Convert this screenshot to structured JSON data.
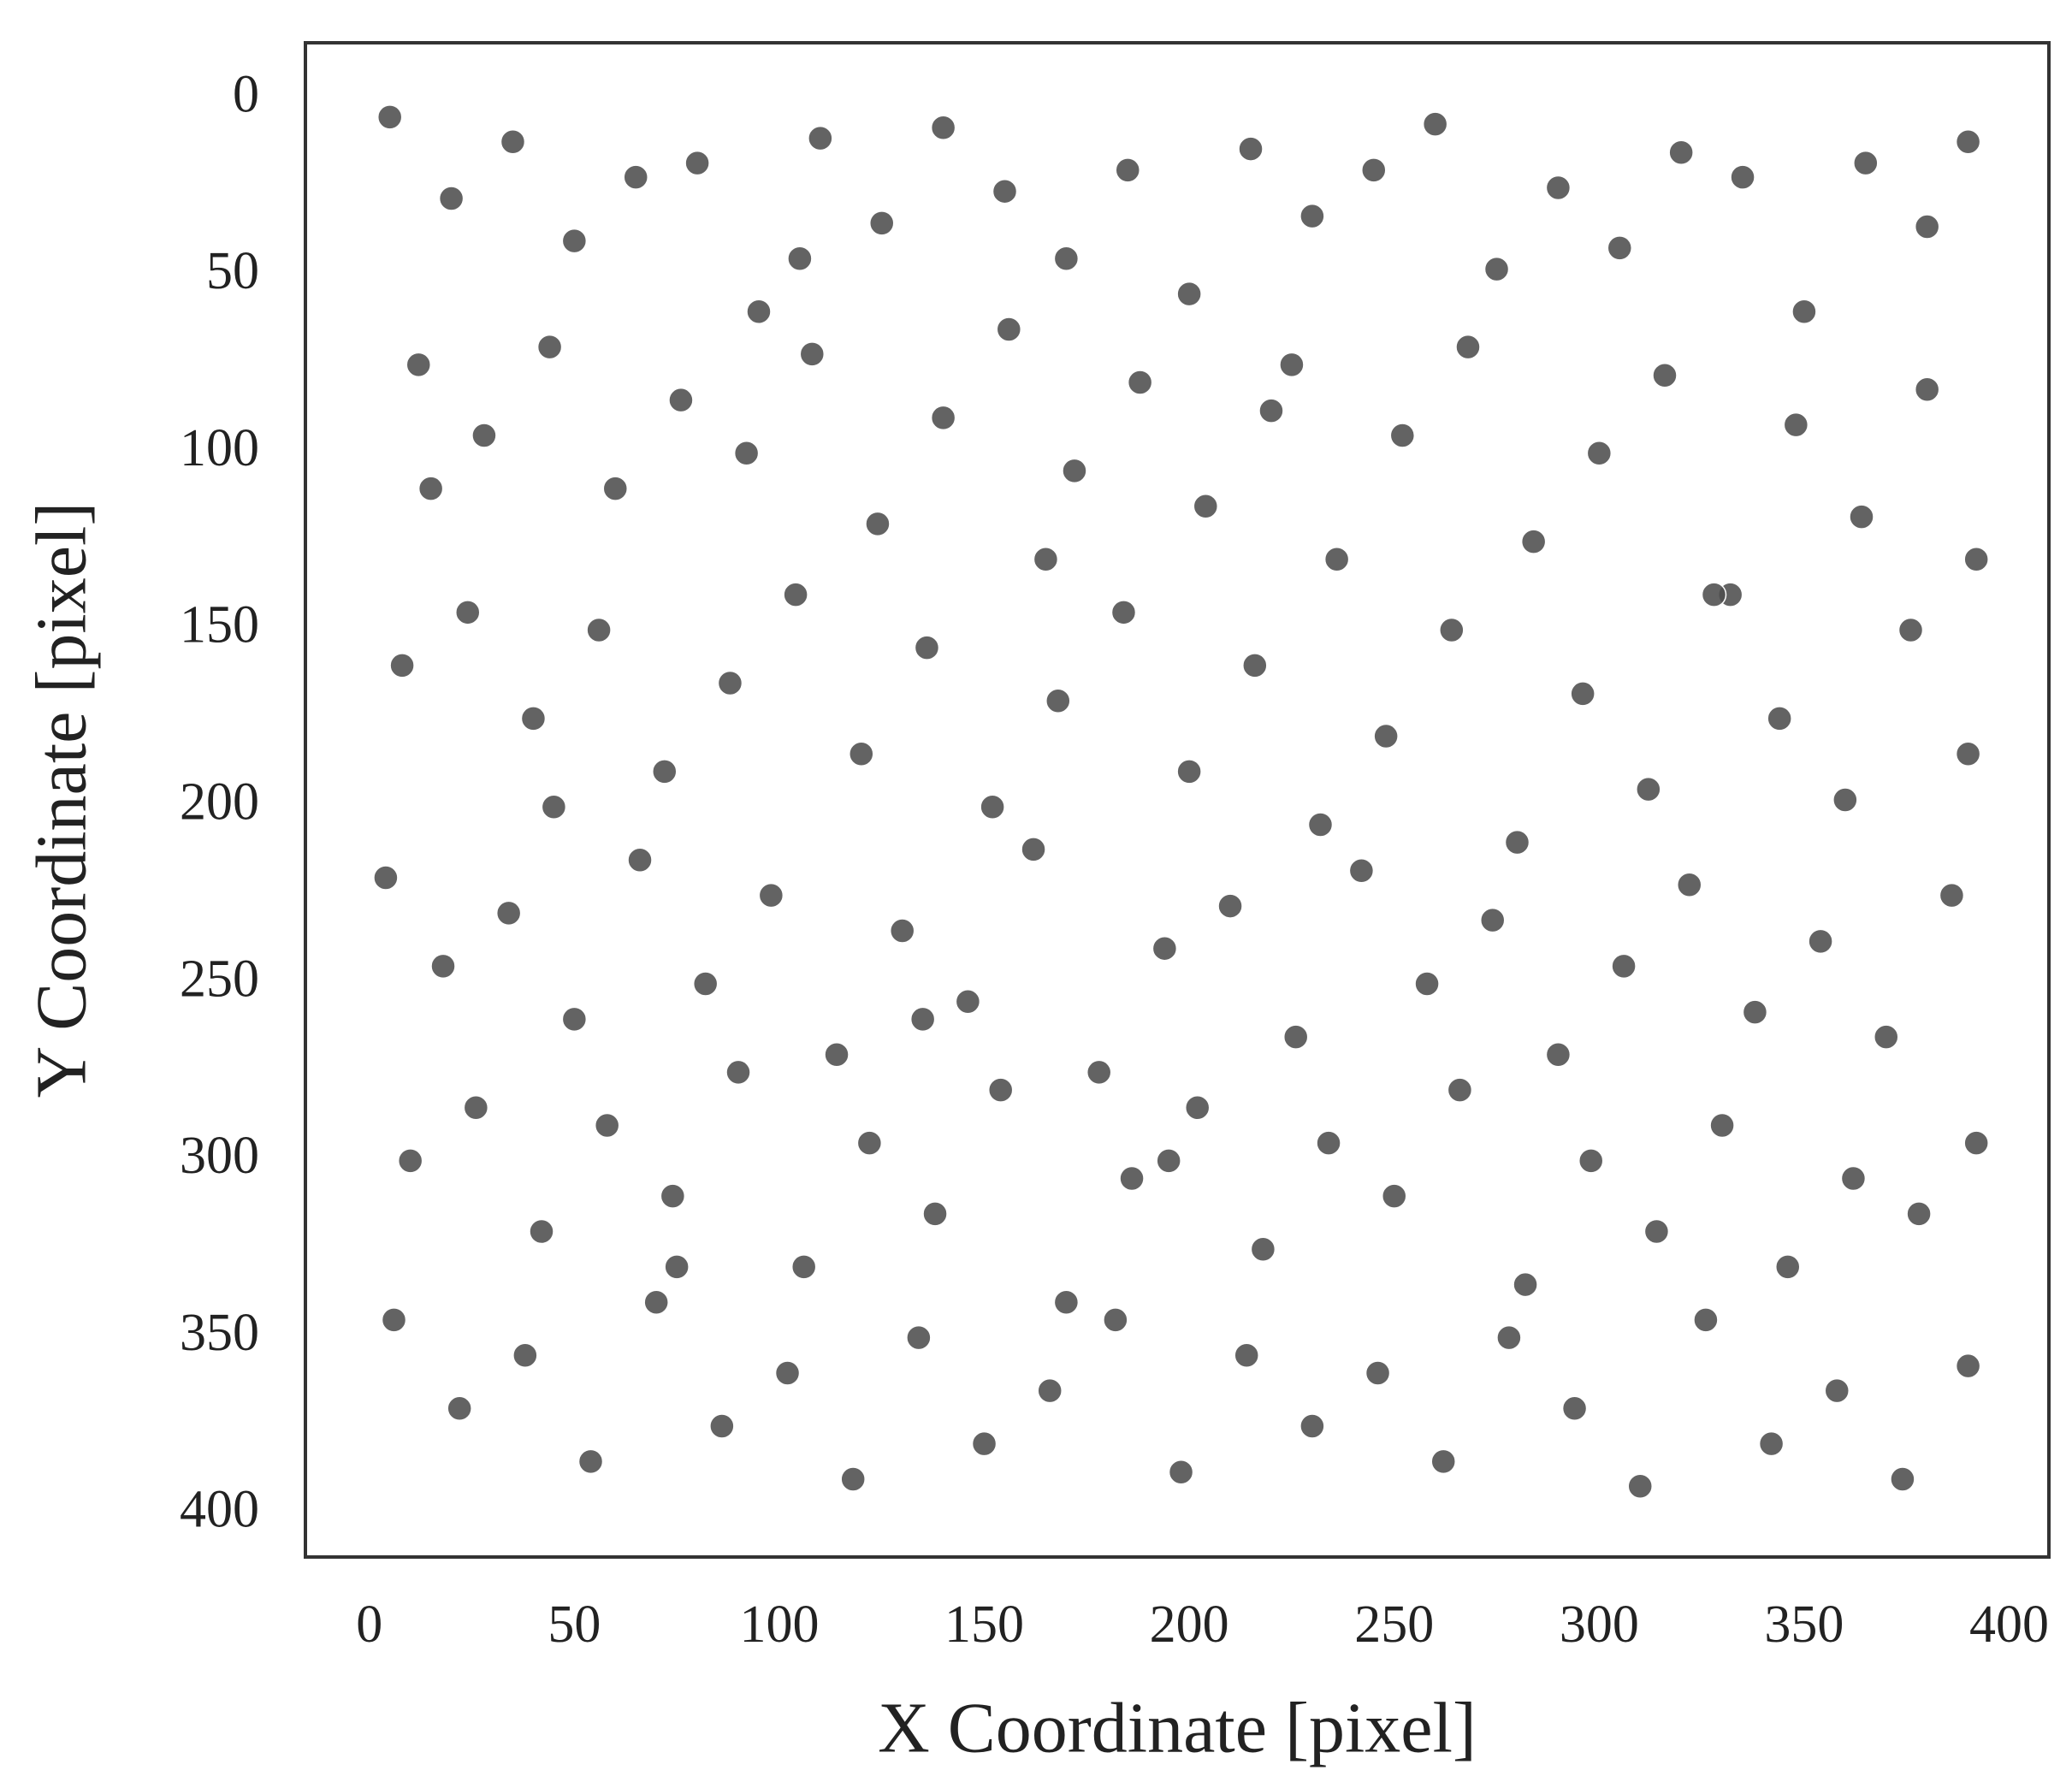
{
  "chart_data": {
    "type": "scatter",
    "xlabel": "X Coordinate [pixel]",
    "ylabel": "Y Coordinate [pixel]",
    "xlim": [
      -15.6,
      409.7
    ],
    "ylim": [
      412,
      -16
    ],
    "xticks": [
      0,
      50,
      100,
      150,
      200,
      250,
      300,
      350,
      400
    ],
    "yticks": [
      0,
      50,
      100,
      150,
      200,
      250,
      300,
      350,
      400
    ],
    "grid": false,
    "series": [
      {
        "color": "#4d4d4d",
        "x": [
          5,
          20,
          35,
          50,
          65,
          80,
          95,
          110,
          125,
          140,
          155,
          170,
          185,
          200,
          215,
          230,
          245,
          260,
          275,
          290,
          305,
          320,
          335,
          350,
          365,
          380,
          390,
          12,
          28,
          44,
          60,
          76,
          92,
          108,
          124,
          140,
          156,
          172,
          188,
          204,
          220,
          236,
          252,
          268,
          284,
          300,
          316,
          332,
          348,
          364,
          380,
          392,
          8,
          24,
          40,
          56,
          72,
          88,
          104,
          120,
          136,
          152,
          168,
          184,
          200,
          216,
          232,
          248,
          264,
          280,
          296,
          312,
          328,
          344,
          360,
          376,
          390,
          4,
          18,
          34,
          50,
          66,
          82,
          98,
          114,
          130,
          146,
          162,
          178,
          194,
          210,
          226,
          242,
          258,
          274,
          290,
          306,
          322,
          338,
          354,
          370,
          386,
          10,
          26,
          42,
          58,
          74,
          90,
          106,
          122,
          138,
          154,
          170,
          186,
          202,
          218,
          234,
          250,
          266,
          282,
          298,
          314,
          330,
          346,
          362,
          378,
          392,
          6,
          22,
          38,
          54,
          70,
          86,
          102,
          118,
          134,
          150,
          166,
          182,
          198,
          214,
          230,
          246,
          262,
          278,
          294,
          310,
          326,
          342,
          358,
          374,
          390,
          15,
          45,
          75,
          105,
          135,
          165,
          195,
          225
        ],
        "values": [
          5,
          28,
          12,
          40,
          22,
          18,
          60,
          11,
          35,
          8,
          26,
          45,
          20,
          55,
          14,
          33,
          20,
          7,
          48,
          25,
          42,
          15,
          22,
          60,
          18,
          36,
          12,
          75,
          95,
          70,
          110,
          85,
          100,
          72,
          120,
          90,
          65,
          105,
          80,
          115,
          88,
          130,
          95,
          70,
          125,
          100,
          78,
          140,
          92,
          118,
          82,
          130,
          160,
          145,
          175,
          150,
          190,
          165,
          140,
          185,
          155,
          200,
          170,
          145,
          190,
          160,
          205,
          180,
          150,
          210,
          168,
          195,
          140,
          175,
          198,
          150,
          185,
          220,
          245,
          230,
          260,
          215,
          250,
          225,
          270,
          235,
          255,
          212,
          275,
          240,
          228,
          265,
          218,
          250,
          232,
          270,
          245,
          222,
          258,
          238,
          265,
          225,
          300,
          285,
          320,
          290,
          310,
          275,
          330,
          295,
          315,
          280,
          340,
          305,
          285,
          325,
          295,
          310,
          280,
          335,
          300,
          320,
          290,
          330,
          305,
          315,
          295,
          345,
          370,
          355,
          385,
          340,
          375,
          360,
          390,
          350,
          380,
          365,
          345,
          388,
          355,
          375,
          360,
          385,
          350,
          370,
          392,
          345,
          380,
          365,
          390,
          358,
          110,
          200,
          330,
          45,
          260,
          130,
          300,
          75
        ]
      }
    ]
  }
}
